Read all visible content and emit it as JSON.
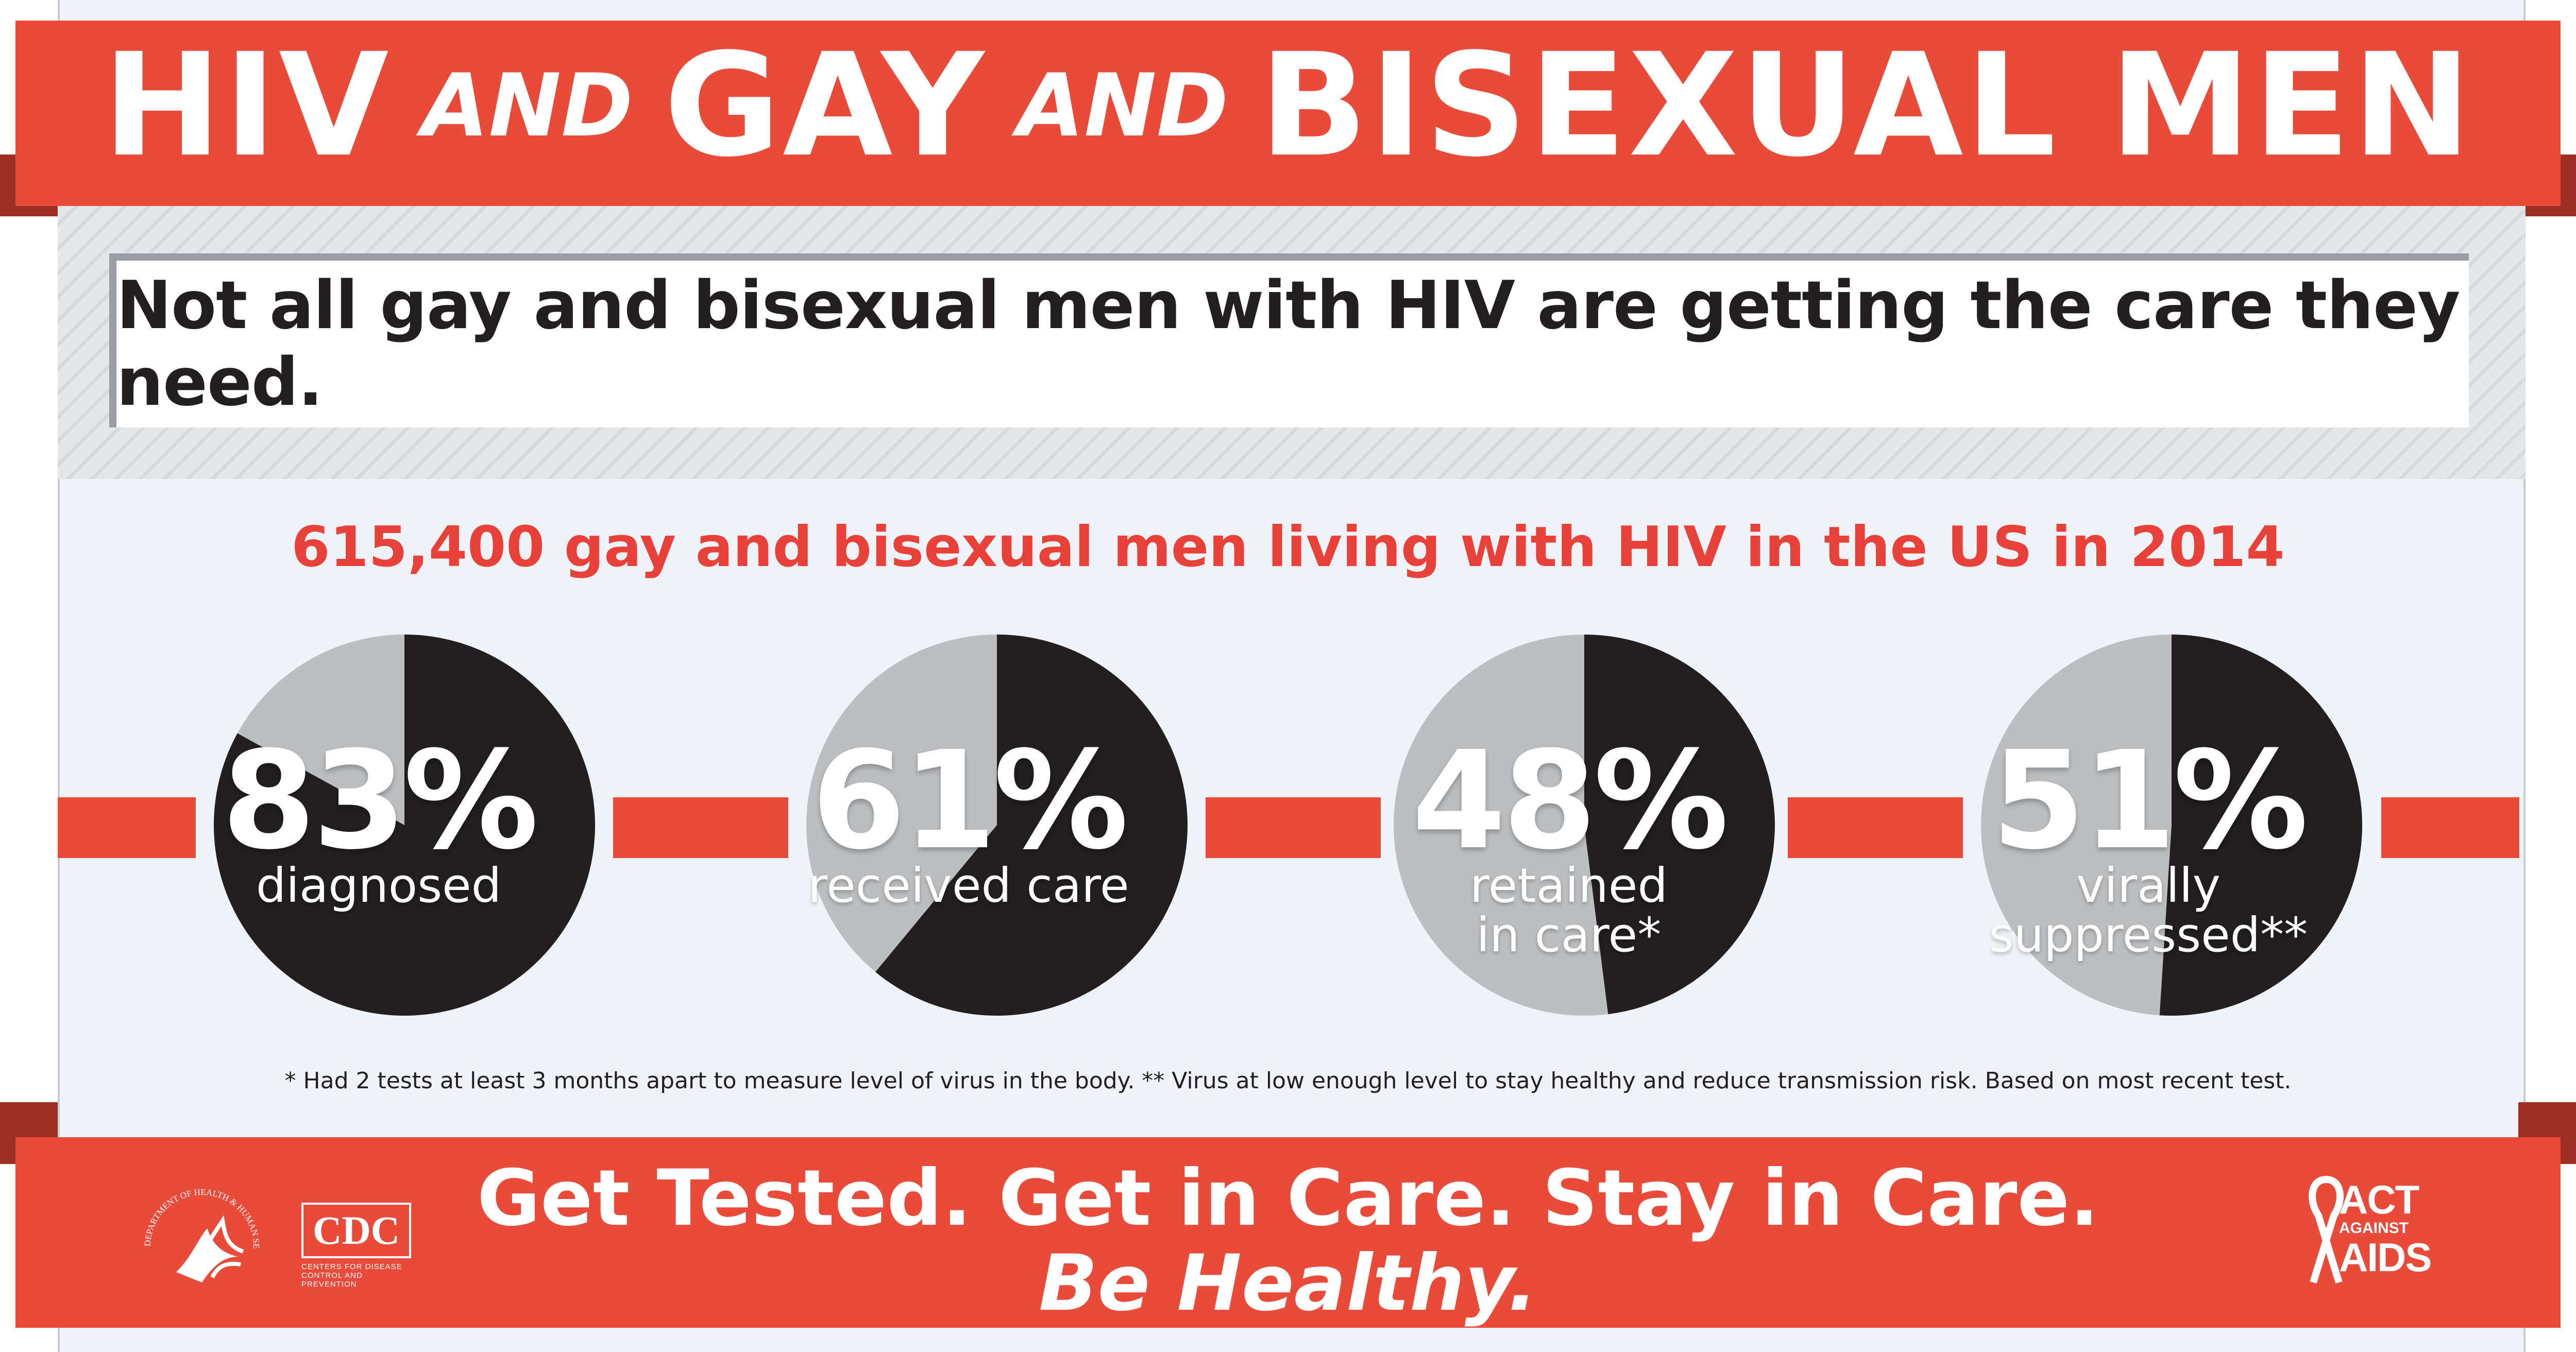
{
  "title": {
    "part1": "HIV",
    "and1": "AND",
    "part2": "GAY",
    "and2": "AND",
    "part3": "BISEXUAL MEN"
  },
  "message": "Not all gay and bisexual men with HIV are getting the care they need.",
  "subhead": "615,400 gay and bisexual men living with HIV in the US in 2014",
  "chart_data": {
    "type": "pie",
    "title": "615,400 gay and bisexual men living with HIV in the US in 2014",
    "series": [
      {
        "name": "diagnosed",
        "value": 83,
        "label_pct": "83%",
        "caption": [
          "diagnosed"
        ]
      },
      {
        "name": "received care",
        "value": 61,
        "label_pct": "61%",
        "caption": [
          "received care"
        ]
      },
      {
        "name": "retained in care*",
        "value": 48,
        "label_pct": "48%",
        "caption": [
          "retained",
          "in care*"
        ]
      },
      {
        "name": "virally suppressed**",
        "value": 51,
        "label_pct": "51%",
        "caption": [
          "virally",
          "suppressed**"
        ]
      }
    ],
    "colors": {
      "filled": "#231f20",
      "remaining": "#bcbec0"
    }
  },
  "footnote": "* Had 2 tests at least 3 months apart to measure level of virus in the body. ** Virus at low enough level to stay healthy and reduce transmission risk. Based on most recent test.",
  "footer": {
    "cta_line1": "Get Tested. Get in Care. Stay in Care.",
    "cta_line2": "Be Healthy.",
    "logos": {
      "hhs_text": "DEPARTMENT OF HEALTH & HUMAN SERVICES USA",
      "cdc": "CDC",
      "cdc_sub1": "CENTERS FOR DISEASE",
      "cdc_sub2": "CONTROL AND PREVENTION",
      "aaa_line1": "ACT",
      "aaa_line2": "AGAINST",
      "aaa_line3": "AIDS"
    }
  },
  "colors": {
    "brand_red": "#e94b3a",
    "subhead_red": "#e8413a",
    "text_dark": "#231f20",
    "background": "#eff3f7"
  }
}
